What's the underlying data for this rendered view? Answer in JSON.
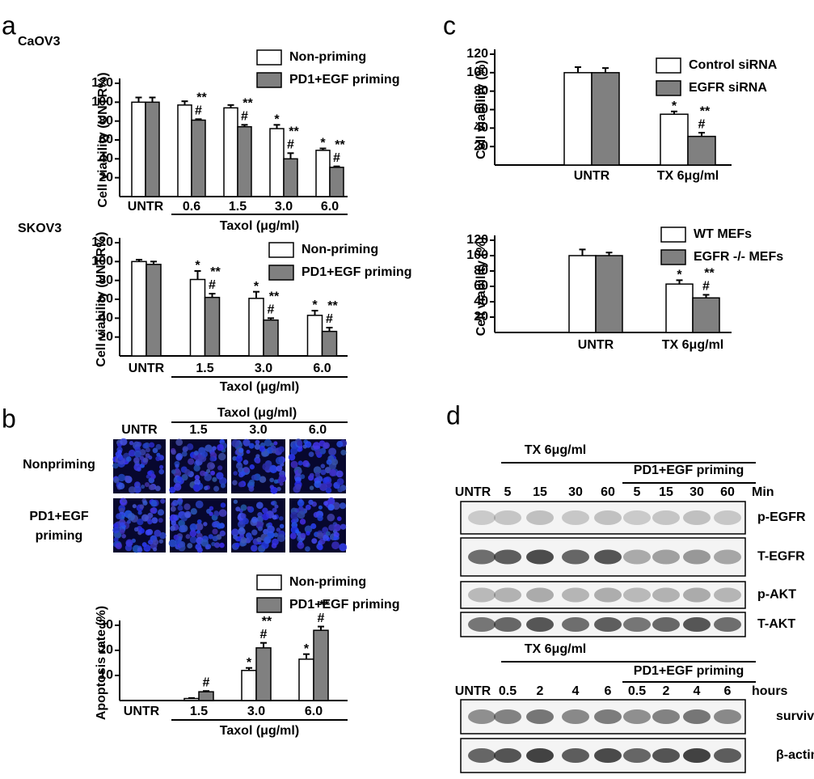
{
  "panel_labels": [
    "a",
    "b",
    "c",
    "d"
  ],
  "chart_data": [
    {
      "type": "bar",
      "title": "CaOV3",
      "ylabel": "Cell viability (UNTR%)",
      "xlabel": "Taxol (μg/ml)",
      "categories": [
        "UNTR",
        "0.6",
        "1.5",
        "3.0",
        "6.0"
      ],
      "series": [
        {
          "name": "Non-priming",
          "color": "#ffffff",
          "values": [
            100,
            97,
            94,
            72,
            49
          ],
          "errors": [
            5,
            4,
            3,
            4,
            2
          ],
          "star_labels": [
            null,
            null,
            null,
            "*",
            "*"
          ]
        },
        {
          "name": "PD1+EGF priming",
          "color": "#808080",
          "values": [
            100,
            81,
            74,
            40,
            31
          ],
          "errors": [
            5,
            1,
            2,
            6,
            1
          ],
          "star_labels": [
            null,
            "**",
            "**",
            "**",
            "**"
          ],
          "hash_labels": [
            null,
            "#",
            "#",
            "#",
            "#"
          ]
        }
      ],
      "ylim": [
        0,
        120
      ],
      "yticks": [
        20,
        40,
        60,
        80,
        100,
        120
      ]
    },
    {
      "type": "bar",
      "title": "SKOV3",
      "ylabel": "Cell viability (UNTR%)",
      "xlabel": "Taxol (μg/ml)",
      "categories": [
        "UNTR",
        "1.5",
        "3.0",
        "6.0"
      ],
      "series": [
        {
          "name": "Non-priming",
          "color": "#ffffff",
          "values": [
            100,
            81,
            61,
            43
          ],
          "errors": [
            2,
            9,
            7,
            5
          ],
          "star_labels": [
            null,
            "*",
            "*",
            "*"
          ]
        },
        {
          "name": "PD1+EGF priming",
          "color": "#808080",
          "values": [
            97,
            62,
            38,
            26
          ],
          "errors": [
            3,
            4,
            2,
            4
          ],
          "star_labels": [
            null,
            "**",
            "**",
            "**"
          ],
          "hash_labels": [
            null,
            "#",
            "#",
            "#"
          ]
        }
      ],
      "ylim": [
        0,
        120
      ],
      "yticks": [
        20,
        40,
        60,
        80,
        100,
        120
      ]
    },
    {
      "type": "bar",
      "ylabel": "Apoptosis rate (%)",
      "xlabel": "Taxol (μg/ml)",
      "categories": [
        "UNTR",
        "1.5",
        "3.0",
        "6.0"
      ],
      "series": [
        {
          "name": "Non-priming",
          "color": "#ffffff",
          "values": [
            0,
            0.8,
            12,
            16.5
          ],
          "errors": [
            0,
            0.2,
            1,
            2
          ],
          "star_labels": [
            null,
            null,
            "*",
            "*"
          ]
        },
        {
          "name": "PD1+EGF priming",
          "color": "#808080",
          "values": [
            0,
            3.5,
            21,
            28
          ],
          "errors": [
            0,
            0.3,
            2,
            1.5
          ],
          "star_labels": [
            null,
            null,
            "**",
            "**"
          ],
          "hash_labels": [
            null,
            "#",
            "#",
            "#"
          ]
        }
      ],
      "ylim": [
        0,
        30
      ],
      "yticks": [
        10,
        20,
        30
      ]
    },
    {
      "type": "bar",
      "ylabel": "Cell viability (%)",
      "categories": [
        "UNTR",
        "TX 6μg/ml"
      ],
      "series": [
        {
          "name": "Control siRNA",
          "color": "#ffffff",
          "values": [
            100,
            55
          ],
          "errors": [
            6,
            3
          ],
          "star_labels": [
            null,
            "*"
          ]
        },
        {
          "name": "EGFR siRNA",
          "color": "#808080",
          "values": [
            100,
            31
          ],
          "errors": [
            5,
            4
          ],
          "star_labels": [
            null,
            "**"
          ],
          "hash_labels": [
            null,
            "#"
          ]
        }
      ],
      "ylim": [
        0,
        120
      ],
      "yticks": [
        20,
        40,
        60,
        80,
        100,
        120
      ]
    },
    {
      "type": "bar",
      "ylabel": "Cell viability (%)",
      "categories": [
        "UNTR",
        "TX 6μg/ml"
      ],
      "series": [
        {
          "name": "WT MEFs",
          "color": "#ffffff",
          "values": [
            100,
            63
          ],
          "errors": [
            8,
            5
          ],
          "star_labels": [
            null,
            "*"
          ]
        },
        {
          "name": "EGFR -/- MEFs",
          "color": "#808080",
          "values": [
            100,
            45
          ],
          "errors": [
            4,
            4
          ],
          "star_labels": [
            null,
            "**"
          ],
          "hash_labels": [
            null,
            "#"
          ]
        }
      ],
      "ylim": [
        0,
        120
      ],
      "yticks": [
        20,
        40,
        60,
        80,
        100,
        120
      ]
    }
  ],
  "microscopy": {
    "header": "Taxol (μg/ml)",
    "columns": [
      "UNTR",
      "1.5",
      "3.0",
      "6.0"
    ],
    "rows": [
      [
        "Nonpriming"
      ],
      [
        "PD1+EGF",
        "priming"
      ]
    ]
  },
  "western_blot": [
    {
      "treatment": "TX 6μg/ml",
      "priming": "PD1+EGF priming",
      "lanes": [
        "UNTR",
        "5",
        "15",
        "30",
        "60",
        "5",
        "15",
        "30",
        "60"
      ],
      "unit": "Min",
      "bands": [
        "p-EGFR",
        "T-EGFR",
        "p-AKT",
        "T-AKT"
      ]
    },
    {
      "treatment": "TX 6μg/ml",
      "priming": "PD1+EGF priming",
      "lanes": [
        "UNTR",
        "0.5",
        "2",
        "4",
        "6",
        "0.5",
        "2",
        "4",
        "6"
      ],
      "unit": "hours",
      "bands": [
        "survivin",
        "β-actin"
      ]
    }
  ]
}
